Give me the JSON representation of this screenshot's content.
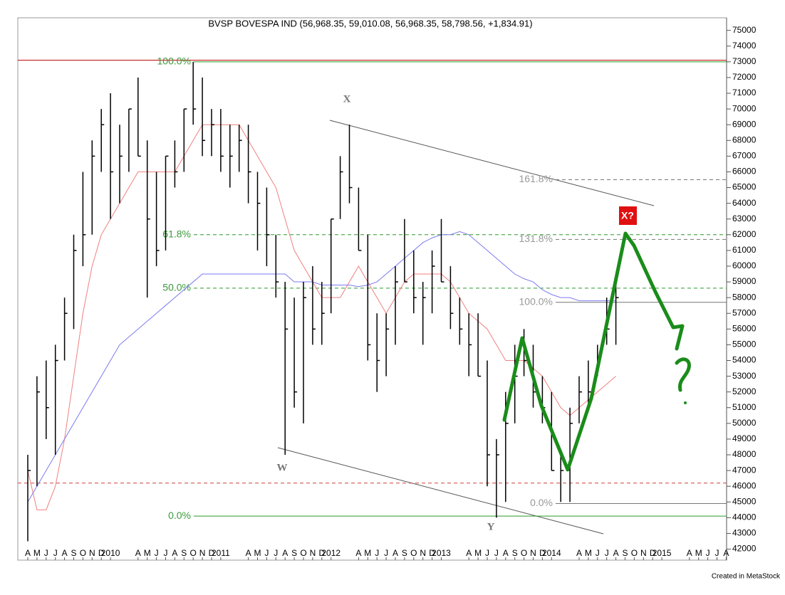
{
  "chart_data": {
    "type": "ohlc",
    "title": "BVSP BOVESPA IND (56,968.35, 59,010.08, 56,968.35, 58,798.56, +1,834.91)",
    "footer": "Created in MetaStock",
    "categories": [
      "A",
      "M",
      "J",
      "J",
      "A",
      "S",
      "O",
      "N",
      "D",
      "2010",
      null,
      null,
      "A",
      "M",
      "J",
      "J",
      "A",
      "S",
      "O",
      "N",
      "D",
      "2011",
      null,
      null,
      "A",
      "M",
      "J",
      "J",
      "A",
      "S",
      "O",
      "N",
      "D",
      "2012",
      null,
      null,
      "A",
      "M",
      "J",
      "J",
      "A",
      "S",
      "O",
      "N",
      "D",
      "2013",
      null,
      null,
      "A",
      "M",
      "J",
      "J",
      "A",
      "S",
      "O",
      "N",
      "D",
      "2014",
      null,
      null,
      "A",
      "M",
      "J",
      "J",
      "A",
      "S",
      "O",
      "N",
      "D",
      "2015",
      null,
      null,
      "A",
      "M",
      "J",
      "J",
      "A"
    ],
    "high": [
      48000,
      53000,
      54000,
      55000,
      58000,
      62000,
      66000,
      68000,
      70000,
      71000,
      69000,
      70000,
      72000,
      68000,
      66000,
      67000,
      68000,
      70000,
      73000,
      72000,
      70000,
      70000,
      69000,
      69000,
      69000,
      66000,
      65000,
      62000,
      59000,
      58000,
      59000,
      60000,
      59000,
      63000,
      67000,
      69000,
      65000,
      62000,
      57000,
      57000,
      60000,
      63000,
      61000,
      59000,
      61000,
      63000,
      60000,
      58000,
      57000,
      57000,
      54000,
      49000,
      52000,
      55000,
      56000,
      55000,
      53000,
      52000,
      48000,
      51000,
      53000,
      54000,
      55000,
      58000,
      59000,
      null,
      null,
      null,
      null,
      null,
      null,
      null,
      null,
      null,
      null,
      null,
      null
    ],
    "low": [
      42500,
      46000,
      49000,
      48000,
      54000,
      56000,
      60000,
      62000,
      66000,
      63000,
      64000,
      66000,
      67000,
      58000,
      60000,
      61000,
      65000,
      66000,
      69000,
      67000,
      67000,
      66000,
      65000,
      66000,
      64000,
      61000,
      60000,
      58000,
      48000,
      51000,
      50000,
      55000,
      55000,
      57000,
      63000,
      64000,
      61000,
      54000,
      52000,
      53000,
      55000,
      59000,
      57000,
      55000,
      57000,
      59000,
      56000,
      55000,
      53000,
      53000,
      46000,
      44000,
      45000,
      50000,
      53000,
      51000,
      50000,
      47000,
      45000,
      45000,
      50000,
      51000,
      53000,
      55000,
      55000,
      null,
      null,
      null,
      null,
      null,
      null,
      null,
      null,
      null,
      null,
      null,
      null
    ],
    "close": [
      47000,
      52000,
      51000,
      54000,
      57000,
      61000,
      62000,
      67000,
      69000,
      66000,
      67000,
      70000,
      67000,
      63000,
      61000,
      67000,
      66000,
      70000,
      70000,
      68000,
      69000,
      67000,
      67000,
      68000,
      66000,
      64000,
      62000,
      59000,
      56000,
      52000,
      58000,
      56000,
      57000,
      63000,
      66000,
      65000,
      61000,
      55000,
      54000,
      56000,
      59000,
      59000,
      58000,
      58000,
      60000,
      59000,
      57000,
      56000,
      55000,
      53000,
      48000,
      48000,
      50000,
      53000,
      54000,
      52000,
      51000,
      47000,
      47000,
      50000,
      52000,
      52000,
      54000,
      56000,
      58000,
      null,
      null,
      null,
      null,
      null,
      null,
      null,
      null,
      null,
      null,
      null,
      null
    ],
    "bar_color": "#000000",
    "moving_averages": [
      {
        "color": "#f08080",
        "values": [
          47000,
          44500,
          44500,
          46000,
          49000,
          53000,
          57000,
          60000,
          62000,
          63000,
          64000,
          65000,
          66000,
          66000,
          66000,
          66000,
          66000,
          67000,
          68000,
          69000,
          69000,
          69000,
          69000,
          69000,
          68000,
          67000,
          66000,
          65000,
          63000,
          61000,
          60000,
          59000,
          58000,
          58000,
          58000,
          59000,
          60000,
          59000,
          58000,
          57000,
          58000,
          59000,
          59500,
          59500,
          59500,
          59500,
          59000,
          58000,
          57000,
          56500,
          56000,
          55000,
          54000,
          54000,
          54000,
          53500,
          53000,
          52000,
          51000,
          50500,
          51000,
          51500,
          52000,
          52500,
          53000,
          null,
          null,
          null,
          null,
          null,
          null,
          null,
          null,
          null,
          null,
          null,
          null
        ]
      },
      {
        "color": "#7b7bf0",
        "values": [
          45000,
          46000,
          47000,
          48000,
          49000,
          50000,
          51000,
          52000,
          53000,
          54000,
          55000,
          55500,
          56000,
          56500,
          57000,
          57500,
          58000,
          58500,
          59000,
          59500,
          59500,
          59500,
          59500,
          59500,
          59500,
          59500,
          59500,
          59500,
          59500,
          59000,
          59000,
          59000,
          58800,
          58800,
          58800,
          58800,
          58700,
          58800,
          59000,
          59500,
          60000,
          60500,
          61000,
          61500,
          61800,
          62000,
          62000,
          62200,
          62000,
          61500,
          61000,
          60500,
          60000,
          59500,
          59200,
          59000,
          58500,
          58200,
          58000,
          58000,
          57800,
          57800,
          57800,
          57800,
          57800,
          null,
          null,
          null,
          null,
          null,
          null,
          null,
          null,
          null,
          null,
          null,
          null
        ]
      }
    ],
    "ylim": [
      41300,
      75800
    ],
    "yticks": [
      42000,
      43000,
      44000,
      45000,
      46000,
      47000,
      48000,
      49000,
      50000,
      51000,
      52000,
      53000,
      54000,
      55000,
      56000,
      57000,
      58000,
      59000,
      60000,
      61000,
      62000,
      63000,
      64000,
      65000,
      66000,
      67000,
      68000,
      69000,
      70000,
      71000,
      72000,
      73000,
      74000,
      75000
    ],
    "reference_lines": [
      {
        "value": 73100,
        "color": "#c00000",
        "dashed": false
      },
      {
        "value": 46200,
        "color": "#d04040",
        "dashed": true
      }
    ],
    "fib_green": [
      {
        "label": "100.0%",
        "value": 73000,
        "dashed": false
      },
      {
        "label": "61.8%",
        "value": 62000,
        "dashed": true
      },
      {
        "label": "50.0%",
        "value": 58600,
        "dashed": true
      },
      {
        "label": "0.0%",
        "value": 44100,
        "dashed": false
      }
    ],
    "fib_grey": [
      {
        "label": "161.8%",
        "value": 65500,
        "dashed": true
      },
      {
        "label": "131.8%",
        "value": 61700,
        "dashed": true
      },
      {
        "label": "100.0%",
        "value": 57700,
        "dashed": false
      },
      {
        "label": "0.0%",
        "value": 44900,
        "dashed": false
      }
    ],
    "wave_labels": [
      "X",
      "W",
      "Y",
      "X?"
    ]
  }
}
